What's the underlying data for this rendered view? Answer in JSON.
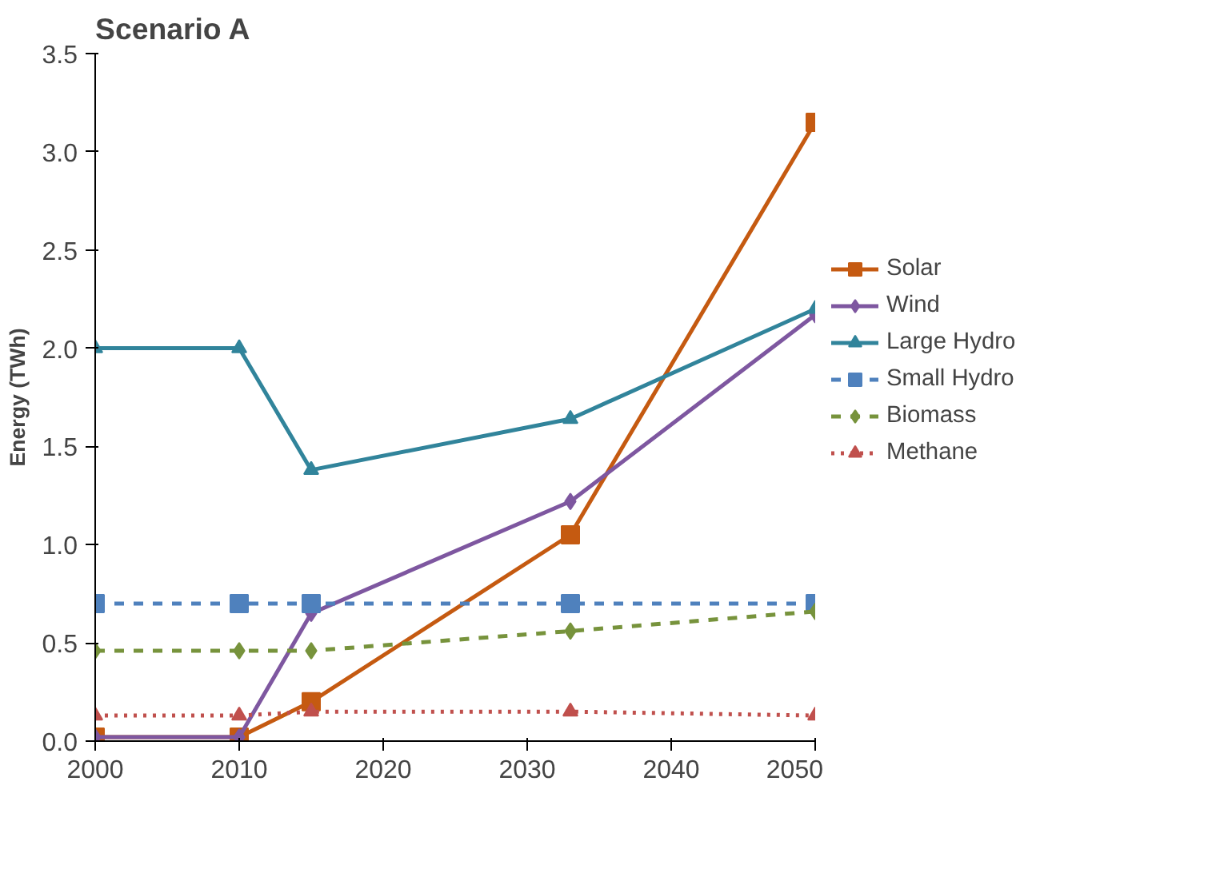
{
  "chart_data": {
    "type": "line",
    "title": "Scenario A",
    "ylabel": "Energy (TWh)",
    "x": [
      2000,
      2010,
      2015,
      2033,
      2050
    ],
    "xlim": [
      2000,
      2050
    ],
    "xticks": [
      2000,
      2010,
      2020,
      2030,
      2040,
      2050
    ],
    "ylim": [
      0,
      3.5
    ],
    "yticks": [
      {
        "value": 0,
        "label": "0.0"
      },
      {
        "value": 0.5,
        "label": "0.5"
      },
      {
        "value": 1,
        "label": "1.0"
      },
      {
        "value": 1.5,
        "label": "1.5"
      },
      {
        "value": 2,
        "label": "2.0"
      },
      {
        "value": 2.5,
        "label": "2.5"
      },
      {
        "value": 3,
        "label": "3.0"
      },
      {
        "value": 3.5,
        "label": "3.5"
      }
    ],
    "grid": false,
    "legend": "right",
    "series": [
      {
        "name": "Solar",
        "color": "#c55a11",
        "marker": "square",
        "line_style": "solid",
        "values": [
          0.02,
          0.02,
          0.2,
          1.05,
          3.15
        ]
      },
      {
        "name": "Wind",
        "color": "#7e57a0",
        "marker": "diamond",
        "line_style": "solid",
        "values": [
          0.02,
          0.02,
          0.65,
          1.22,
          2.17
        ]
      },
      {
        "name": "Large Hydro",
        "color": "#31849b",
        "marker": "triangle",
        "line_style": "solid",
        "values": [
          2.0,
          2.0,
          1.38,
          1.64,
          2.2
        ]
      },
      {
        "name": "Small Hydro",
        "color": "#4f81bd",
        "marker": "square",
        "line_style": "dashed",
        "values": [
          0.7,
          0.7,
          0.7,
          0.7,
          0.7
        ]
      },
      {
        "name": "Biomass",
        "color": "#77933c",
        "marker": "diamond",
        "line_style": "dashed",
        "values": [
          0.46,
          0.46,
          0.46,
          0.56,
          0.66
        ]
      },
      {
        "name": "Methane",
        "color": "#c0504d",
        "marker": "triangle",
        "line_style": "dotted",
        "values": [
          0.13,
          0.13,
          0.15,
          0.15,
          0.13
        ]
      }
    ]
  }
}
